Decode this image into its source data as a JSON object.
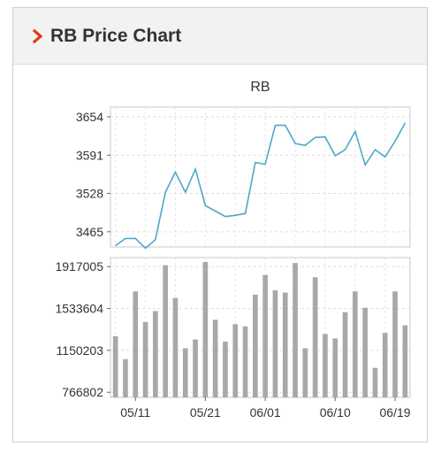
{
  "header": {
    "title": "RB Price Chart",
    "chevron_color": "#e03a1e"
  },
  "chart_data": [
    {
      "type": "line",
      "title": "RB",
      "y_ticks": [
        "3654",
        "3591",
        "3528",
        "3465"
      ],
      "ylim": [
        3440,
        3670
      ],
      "color": "#4ba8c9",
      "grid": true,
      "values": [
        3442,
        3454,
        3454,
        3438,
        3452,
        3530,
        3563,
        3530,
        3568,
        3508,
        3499,
        3490,
        3492,
        3495,
        3579,
        3576,
        3640,
        3640,
        3610,
        3607,
        3620,
        3621,
        3590,
        3600,
        3630,
        3575,
        3600,
        3588,
        3614,
        3644
      ]
    },
    {
      "type": "bar",
      "y_ticks": [
        "1917005",
        "1533604",
        "1150203",
        "766802"
      ],
      "ylim": [
        720000,
        2000000
      ],
      "color": "#a8a8a8",
      "grid": true,
      "values": [
        1280000,
        1070000,
        1690000,
        1410000,
        1510000,
        1930000,
        1630000,
        1170000,
        1250000,
        1960000,
        1430000,
        1230000,
        1390000,
        1370000,
        1660000,
        1840000,
        1700000,
        1680000,
        1950000,
        1170000,
        1820000,
        1300000,
        1260000,
        1500000,
        1690000,
        1540000,
        990000,
        1310000,
        1690000,
        1380000
      ],
      "x_ticks": [
        "05/11",
        "05/21",
        "06/01",
        "06/10",
        "06/19"
      ]
    }
  ]
}
